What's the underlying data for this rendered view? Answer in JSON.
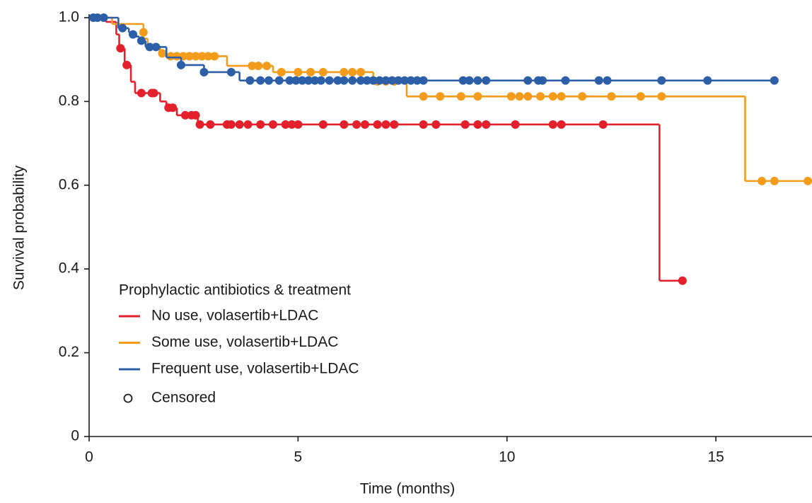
{
  "chart_data": {
    "type": "kaplan-meier",
    "x_label": "Time (months)",
    "y_label": "Survival probability",
    "xlim": [
      0,
      17.3
    ],
    "ylim": [
      0,
      1
    ],
    "xticks": [
      0,
      5,
      10,
      15
    ],
    "yticks": [
      0,
      0.2,
      0.4,
      0.6,
      0.8,
      {
        "value": 1,
        "label": "1.0"
      }
    ],
    "legend_title": "Prophylactic antibiotics & treatment",
    "censored_label": "Censored",
    "series": [
      {
        "name": "No use, volasertib+LDAC",
        "color": "#e3202b",
        "x": [
          0,
          0.4,
          0.65,
          0.72,
          0.85,
          1.0,
          1.1,
          1.7,
          1.85,
          2.1,
          2.6,
          13.65,
          14.2
        ],
        "values": [
          1,
          0.99,
          0.96,
          0.927,
          0.887,
          0.847,
          0.82,
          0.8,
          0.785,
          0.767,
          0.745,
          0.372,
          0.372
        ],
        "censored_x": [
          0.75,
          0.9,
          1.25,
          1.5,
          1.55,
          1.9,
          2.0,
          2.3,
          2.45,
          2.55,
          2.65,
          2.9,
          3.3,
          3.4,
          3.6,
          3.8,
          4.1,
          4.4,
          4.7,
          4.85,
          5.0,
          5.6,
          6.1,
          6.4,
          6.6,
          6.9,
          7.1,
          7.3,
          8.0,
          8.3,
          9.0,
          9.3,
          9.5,
          10.2,
          11.1,
          11.3,
          12.3,
          14.2
        ],
        "censored_values": [
          0.927,
          0.887,
          0.82,
          0.82,
          0.82,
          0.785,
          0.785,
          0.767,
          0.767,
          0.767,
          0.745,
          0.745,
          0.745,
          0.745,
          0.745,
          0.745,
          0.745,
          0.745,
          0.745,
          0.745,
          0.745,
          0.745,
          0.745,
          0.745,
          0.745,
          0.745,
          0.745,
          0.745,
          0.745,
          0.745,
          0.745,
          0.745,
          0.745,
          0.745,
          0.745,
          0.745,
          0.745,
          0.372
        ]
      },
      {
        "name": "Some use, volasertib+LDAC",
        "color": "#f39c1b",
        "x": [
          0,
          0.55,
          1.3,
          1.4,
          1.7,
          1.85,
          3.3,
          4.4,
          6.8,
          7.6,
          15.7,
          17.3
        ],
        "values": [
          1,
          0.985,
          0.95,
          0.93,
          0.915,
          0.908,
          0.885,
          0.87,
          0.848,
          0.812,
          0.61,
          0.61
        ],
        "censored_x": [
          1.3,
          1.75,
          1.95,
          2.1,
          2.25,
          2.4,
          2.55,
          2.7,
          2.85,
          3.0,
          3.9,
          4.05,
          4.25,
          4.6,
          5.0,
          5.3,
          5.6,
          6.1,
          6.3,
          6.5,
          6.9,
          7.1,
          7.3,
          8.0,
          8.4,
          8.9,
          9.3,
          10.1,
          10.3,
          10.5,
          10.8,
          11.1,
          11.3,
          11.8,
          12.5,
          13.2,
          13.7,
          16.1,
          16.4,
          17.2
        ],
        "censored_values": [
          0.965,
          0.915,
          0.908,
          0.908,
          0.908,
          0.908,
          0.908,
          0.908,
          0.908,
          0.908,
          0.885,
          0.885,
          0.885,
          0.87,
          0.87,
          0.87,
          0.87,
          0.87,
          0.87,
          0.87,
          0.848,
          0.848,
          0.848,
          0.812,
          0.812,
          0.812,
          0.812,
          0.812,
          0.812,
          0.812,
          0.812,
          0.812,
          0.812,
          0.812,
          0.812,
          0.812,
          0.812,
          0.61,
          0.61,
          0.61
        ]
      },
      {
        "name": "Frequent use, volasertib+LDAC",
        "color": "#2c5fa8",
        "x": [
          0,
          0.7,
          0.95,
          1.1,
          1.2,
          1.35,
          1.85,
          2.2,
          2.75,
          3.6,
          16.4
        ],
        "values": [
          1,
          0.975,
          0.965,
          0.955,
          0.945,
          0.93,
          0.905,
          0.887,
          0.87,
          0.85,
          0.85
        ],
        "censored_x": [
          0.1,
          0.2,
          0.35,
          0.8,
          1.05,
          1.25,
          1.45,
          1.6,
          2.2,
          2.75,
          3.4,
          3.85,
          4.1,
          4.3,
          4.55,
          4.8,
          4.95,
          5.1,
          5.25,
          5.4,
          5.55,
          5.75,
          5.95,
          6.1,
          6.3,
          6.5,
          6.65,
          6.8,
          6.95,
          7.1,
          7.25,
          7.4,
          7.55,
          7.7,
          7.85,
          8.0,
          8.95,
          9.1,
          9.3,
          9.5,
          10.5,
          10.75,
          10.85,
          11.4,
          12.2,
          12.4,
          13.7,
          14.8,
          16.4
        ],
        "censored_values": [
          1,
          1,
          1,
          0.975,
          0.96,
          0.945,
          0.93,
          0.93,
          0.887,
          0.87,
          0.87,
          0.85,
          0.85,
          0.85,
          0.85,
          0.85,
          0.85,
          0.85,
          0.85,
          0.85,
          0.85,
          0.85,
          0.85,
          0.85,
          0.85,
          0.85,
          0.85,
          0.85,
          0.85,
          0.85,
          0.85,
          0.85,
          0.85,
          0.85,
          0.85,
          0.85,
          0.85,
          0.85,
          0.85,
          0.85,
          0.85,
          0.85,
          0.85,
          0.85,
          0.85,
          0.85,
          0.85,
          0.85,
          0.85
        ]
      }
    ]
  }
}
